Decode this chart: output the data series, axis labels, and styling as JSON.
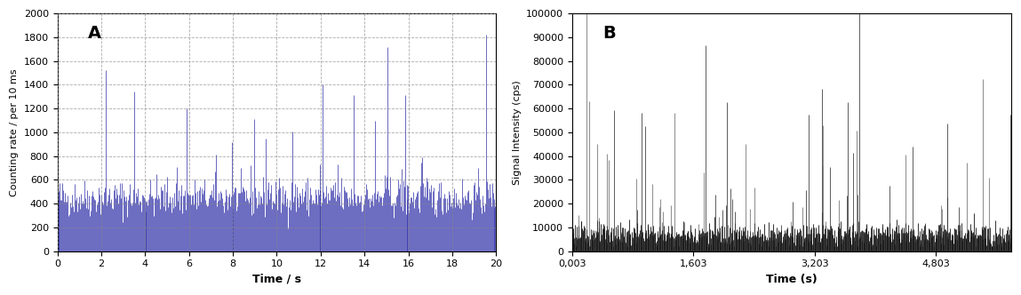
{
  "panel_A": {
    "label": "A",
    "xlabel": "Time / s",
    "ylabel": "Counting rate / per 10 ms",
    "xlim": [
      0,
      20
    ],
    "ylim": [
      0,
      2000
    ],
    "yticks": [
      0,
      200,
      400,
      600,
      800,
      1000,
      1200,
      1400,
      1600,
      1800,
      2000
    ],
    "xticks": [
      0,
      2,
      4,
      6,
      8,
      10,
      12,
      14,
      16,
      18,
      20
    ],
    "baseline": 450,
    "baseline_std": 80,
    "spike_color": "#3333aa",
    "background_color": "#ffffff",
    "grid_color": "#888888",
    "grid_style": "--",
    "num_points": 500,
    "seed": 42
  },
  "panel_B": {
    "label": "B",
    "xlabel": "Time (s)",
    "ylabel": "Signal Intensity (cps)",
    "xlim_start": 0.003,
    "xlim_end": 5.8,
    "ylim": [
      0,
      100000
    ],
    "yticks": [
      0,
      10000,
      20000,
      30000,
      40000,
      50000,
      60000,
      70000,
      80000,
      90000,
      100000
    ],
    "ytick_labels": [
      "0",
      "10000",
      "20000",
      "30000",
      "40000",
      "50000",
      "60000",
      "70000",
      "80000",
      "90000",
      "100000"
    ],
    "xtick_labels": [
      "0,003",
      "1,603",
      "3,203",
      "4,803"
    ],
    "xtick_positions": [
      0.003,
      1.603,
      3.203,
      4.803
    ],
    "baseline": 7000,
    "baseline_std": 2500,
    "spike_color_dark": "#111111",
    "spike_color_gray": "#888888",
    "background_color": "#ffffff",
    "num_points": 800,
    "seed": 123
  }
}
